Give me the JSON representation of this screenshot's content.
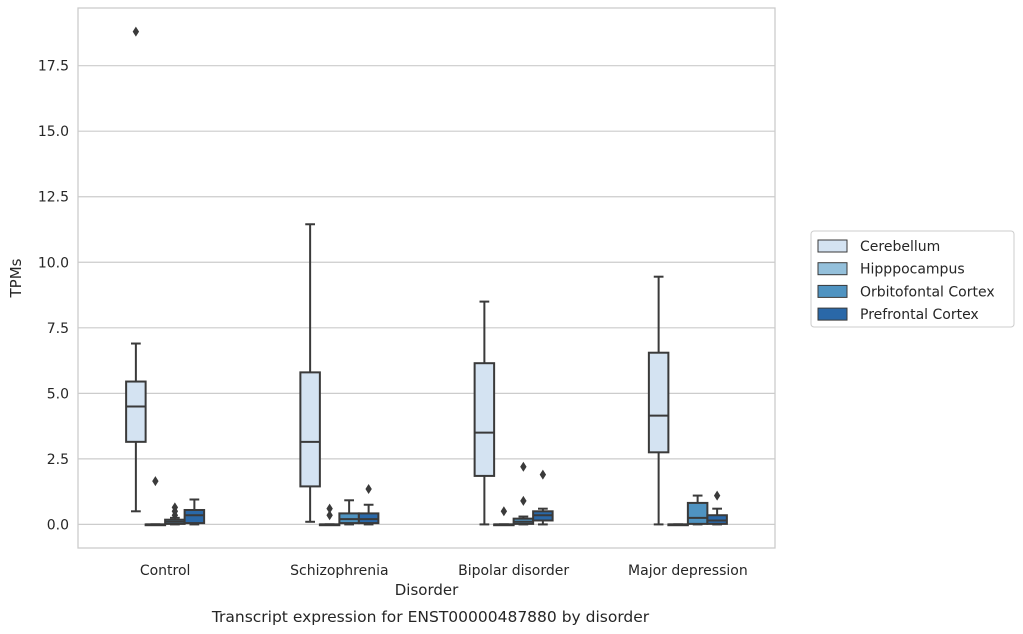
{
  "chart_data": {
    "type": "box",
    "xlabel": "Disorder",
    "ylabel": "TPMs",
    "caption": "Transcript expression for ENST00000487880 by disorder",
    "ylim": [
      -0.9,
      19.7
    ],
    "yticks": [
      "0.0",
      "2.5",
      "5.0",
      "7.5",
      "10.0",
      "12.5",
      "15.0",
      "17.5"
    ],
    "grid": "horizontal",
    "legend_position": "right",
    "categories": [
      "Control",
      "Schizophrenia",
      "Bipolar disorder",
      "Major depression"
    ],
    "series": [
      {
        "name": "Cerebellum",
        "color": "#d4e3f2",
        "boxes": [
          {
            "whislo": 0.5,
            "q1": 3.15,
            "med": 4.5,
            "q3": 5.45,
            "whishi": 6.9,
            "fliers": [
              18.8
            ]
          },
          {
            "whislo": 0.1,
            "q1": 1.45,
            "med": 3.15,
            "q3": 5.8,
            "whishi": 11.45,
            "fliers": []
          },
          {
            "whislo": 0.0,
            "q1": 1.85,
            "med": 3.5,
            "q3": 6.15,
            "whishi": 8.5,
            "fliers": []
          },
          {
            "whislo": 0.0,
            "q1": 2.75,
            "med": 4.15,
            "q3": 6.55,
            "whishi": 9.45,
            "fliers": []
          }
        ]
      },
      {
        "name": "Hipppocampus",
        "color": "#94c0db",
        "boxes": [
          {
            "whislo": 0.0,
            "q1": 0.0,
            "med": 0.0,
            "q3": 0.0,
            "whishi": 0.0,
            "fliers": [
              1.65
            ]
          },
          {
            "whislo": 0.0,
            "q1": 0.0,
            "med": 0.0,
            "q3": 0.0,
            "whishi": 0.0,
            "fliers": [
              0.35,
              0.6
            ]
          },
          {
            "whislo": 0.0,
            "q1": 0.0,
            "med": 0.0,
            "q3": 0.0,
            "whishi": 0.0,
            "fliers": [
              0.5
            ]
          },
          {
            "whislo": 0.0,
            "q1": 0.0,
            "med": 0.0,
            "q3": 0.0,
            "whishi": 0.0,
            "fliers": []
          }
        ]
      },
      {
        "name": "Orbitofontal Cortex",
        "color": "#4f93c1",
        "boxes": [
          {
            "whislo": 0.0,
            "q1": 0.02,
            "med": 0.1,
            "q3": 0.18,
            "whishi": 0.25,
            "fliers": [
              0.35,
              0.5,
              0.65
            ]
          },
          {
            "whislo": 0.0,
            "q1": 0.05,
            "med": 0.2,
            "q3": 0.42,
            "whishi": 0.92,
            "fliers": []
          },
          {
            "whislo": 0.0,
            "q1": 0.02,
            "med": 0.1,
            "q3": 0.22,
            "whishi": 0.3,
            "fliers": [
              0.9,
              2.2
            ]
          },
          {
            "whislo": 0.0,
            "q1": 0.02,
            "med": 0.25,
            "q3": 0.82,
            "whishi": 1.1,
            "fliers": []
          }
        ]
      },
      {
        "name": "Prefrontal Cortex",
        "color": "#2a68a8",
        "boxes": [
          {
            "whislo": 0.0,
            "q1": 0.05,
            "med": 0.35,
            "q3": 0.55,
            "whishi": 0.95,
            "fliers": []
          },
          {
            "whislo": 0.0,
            "q1": 0.05,
            "med": 0.2,
            "q3": 0.42,
            "whishi": 0.75,
            "fliers": [
              1.35
            ]
          },
          {
            "whislo": 0.0,
            "q1": 0.15,
            "med": 0.35,
            "q3": 0.5,
            "whishi": 0.6,
            "fliers": [
              1.9
            ]
          },
          {
            "whislo": 0.0,
            "q1": 0.02,
            "med": 0.15,
            "q3": 0.35,
            "whishi": 0.6,
            "fliers": [
              1.1
            ]
          }
        ]
      }
    ]
  }
}
